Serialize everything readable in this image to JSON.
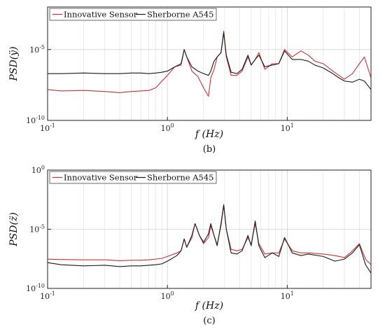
{
  "chart_data": [
    {
      "type": "line",
      "panel_label": "(b)",
      "ylabel": "PSD(ÿ)",
      "xlabel": "f (Hz)",
      "x_scale": "log",
      "y_scale": "log",
      "xlim": [
        0.1,
        50
      ],
      "ylim": [
        1e-10,
        0.01
      ],
      "x_ticks": [
        0.1,
        1,
        10
      ],
      "x_tick_labels": [
        "10^-1",
        "10^0",
        "10^1"
      ],
      "y_ticks": [
        1e-10,
        1e-05
      ],
      "y_tick_labels": [
        "10^-10",
        "10^-5"
      ],
      "grid": true,
      "legend": "top-left",
      "series": [
        {
          "name": "Innovative Sensor",
          "color": "#cc3333",
          "points": [
            [
              0.1,
              1.5e-08
            ],
            [
              0.13,
              1.2e-08
            ],
            [
              0.2,
              1.3e-08
            ],
            [
              0.3,
              1.1e-08
            ],
            [
              0.4,
              9e-09
            ],
            [
              0.5,
              1.1e-08
            ],
            [
              0.6,
              1.2e-08
            ],
            [
              0.7,
              1.3e-08
            ],
            [
              0.8,
              2e-08
            ],
            [
              0.9,
              6e-08
            ],
            [
              1.0,
              1.5e-07
            ],
            [
              1.15,
              6e-07
            ],
            [
              1.3,
              8e-07
            ],
            [
              1.38,
              1e-05
            ],
            [
              1.45,
              3e-06
            ],
            [
              1.6,
              3e-07
            ],
            [
              1.8,
              1.2e-07
            ],
            [
              2.0,
              2e-08
            ],
            [
              2.2,
              5e-09
            ],
            [
              2.3,
              1e-07
            ],
            [
              2.45,
              4e-07
            ],
            [
              2.6,
              3e-06
            ],
            [
              2.8,
              6e-06
            ],
            [
              2.95,
              0.0002
            ],
            [
              3.1,
              3e-06
            ],
            [
              3.4,
              1.5e-07
            ],
            [
              3.8,
              1.5e-07
            ],
            [
              4.2,
              3e-07
            ],
            [
              4.7,
              3e-06
            ],
            [
              5.0,
              8e-07
            ],
            [
              5.4,
              2e-06
            ],
            [
              5.8,
              6e-06
            ],
            [
              6.5,
              4e-07
            ],
            [
              7.5,
              1e-06
            ],
            [
              8.5,
              1e-06
            ],
            [
              9.5,
              1e-05
            ],
            [
              11,
              3e-06
            ],
            [
              13,
              8e-06
            ],
            [
              15,
              4e-06
            ],
            [
              17,
              1.5e-06
            ],
            [
              20,
              1e-06
            ],
            [
              24,
              3e-07
            ],
            [
              27,
              1.5e-07
            ],
            [
              30,
              8e-08
            ],
            [
              35,
              2e-07
            ],
            [
              40,
              1e-06
            ],
            [
              44,
              3e-06
            ],
            [
              50,
              1e-07
            ]
          ]
        },
        {
          "name": "Sherborne A545",
          "color": "#1a1a1a",
          "points": [
            [
              0.1,
              2e-07
            ],
            [
              0.13,
              2e-07
            ],
            [
              0.2,
              2.2e-07
            ],
            [
              0.3,
              2e-07
            ],
            [
              0.4,
              2e-07
            ],
            [
              0.5,
              2.2e-07
            ],
            [
              0.6,
              2.2e-07
            ],
            [
              0.7,
              2e-07
            ],
            [
              0.8,
              2.2e-07
            ],
            [
              0.9,
              2.5e-07
            ],
            [
              1.0,
              3e-07
            ],
            [
              1.15,
              6e-07
            ],
            [
              1.3,
              1e-06
            ],
            [
              1.38,
              1e-05
            ],
            [
              1.45,
              3e-06
            ],
            [
              1.6,
              6e-07
            ],
            [
              1.8,
              3e-07
            ],
            [
              2.0,
              2e-07
            ],
            [
              2.2,
              1.5e-07
            ],
            [
              2.3,
              3e-07
            ],
            [
              2.45,
              1.5e-06
            ],
            [
              2.6,
              3e-06
            ],
            [
              2.8,
              6e-06
            ],
            [
              2.95,
              0.00015
            ],
            [
              3.1,
              4e-06
            ],
            [
              3.4,
              2.5e-07
            ],
            [
              3.8,
              2e-07
            ],
            [
              4.2,
              4e-07
            ],
            [
              4.7,
              4e-06
            ],
            [
              5.0,
              8e-07
            ],
            [
              5.4,
              2e-06
            ],
            [
              5.8,
              4e-06
            ],
            [
              6.5,
              6e-07
            ],
            [
              7.5,
              8e-07
            ],
            [
              8.5,
              1e-06
            ],
            [
              9.5,
              8e-06
            ],
            [
              11,
              2e-06
            ],
            [
              13,
              2e-06
            ],
            [
              15,
              1.5e-06
            ],
            [
              17,
              8e-07
            ],
            [
              20,
              5e-07
            ],
            [
              24,
              2e-07
            ],
            [
              27,
              1e-07
            ],
            [
              30,
              6e-08
            ],
            [
              35,
              5e-08
            ],
            [
              40,
              8e-08
            ],
            [
              44,
              6e-08
            ],
            [
              50,
              1.5e-08
            ]
          ]
        }
      ]
    },
    {
      "type": "line",
      "panel_label": "(c)",
      "ylabel": "PSD(z̈)",
      "xlabel": "f (Hz)",
      "x_scale": "log",
      "y_scale": "log",
      "xlim": [
        0.1,
        50
      ],
      "ylim": [
        1e-10,
        1
      ],
      "x_ticks": [
        0.1,
        1,
        10
      ],
      "x_tick_labels": [
        "10^-1",
        "10^0",
        "10^1"
      ],
      "y_ticks": [
        1e-10,
        1e-05,
        1
      ],
      "y_tick_labels": [
        "10^-10",
        "10^-5",
        "10^0"
      ],
      "grid": true,
      "legend": "top-left",
      "series": [
        {
          "name": "Innovative Sensor",
          "color": "#cc3333",
          "points": [
            [
              0.1,
              3e-08
            ],
            [
              0.13,
              2.8e-08
            ],
            [
              0.2,
              2.6e-08
            ],
            [
              0.3,
              2.6e-08
            ],
            [
              0.4,
              2.2e-08
            ],
            [
              0.5,
              2.4e-08
            ],
            [
              0.6,
              2.4e-08
            ],
            [
              0.7,
              2.6e-08
            ],
            [
              0.8,
              3e-08
            ],
            [
              0.9,
              3.5e-08
            ],
            [
              1.0,
              5e-08
            ],
            [
              1.2,
              1e-07
            ],
            [
              1.3,
              1.5e-07
            ],
            [
              1.38,
              1.5e-06
            ],
            [
              1.45,
              3e-07
            ],
            [
              1.6,
              2e-06
            ],
            [
              1.7,
              3e-05
            ],
            [
              1.85,
              3e-06
            ],
            [
              2.0,
              6e-07
            ],
            [
              2.2,
              2e-06
            ],
            [
              2.3,
              2e-05
            ],
            [
              2.45,
              3e-06
            ],
            [
              2.6,
              5e-07
            ],
            [
              2.8,
              2e-05
            ],
            [
              2.95,
              0.001
            ],
            [
              3.1,
              1e-05
            ],
            [
              3.4,
              2e-07
            ],
            [
              3.8,
              1.5e-07
            ],
            [
              4.2,
              2e-07
            ],
            [
              4.7,
              2e-06
            ],
            [
              5.0,
              5e-07
            ],
            [
              5.4,
              3e-05
            ],
            [
              5.8,
              6e-07
            ],
            [
              6.5,
              8e-08
            ],
            [
              7.5,
              1e-07
            ],
            [
              8.5,
              1e-07
            ],
            [
              9.5,
              1.5e-06
            ],
            [
              11,
              1.5e-07
            ],
            [
              13,
              1e-07
            ],
            [
              15,
              1e-07
            ],
            [
              20,
              8e-08
            ],
            [
              25,
              6e-08
            ],
            [
              30,
              4e-08
            ],
            [
              35,
              1.5e-07
            ],
            [
              40,
              6e-07
            ],
            [
              45,
              3e-08
            ],
            [
              50,
              1e-08
            ]
          ]
        },
        {
          "name": "Sherborne A545",
          "color": "#1a1a1a",
          "points": [
            [
              0.1,
              1.5e-08
            ],
            [
              0.13,
              1e-08
            ],
            [
              0.2,
              8e-09
            ],
            [
              0.3,
              9e-09
            ],
            [
              0.4,
              7e-09
            ],
            [
              0.5,
              8e-09
            ],
            [
              0.6,
              8e-09
            ],
            [
              0.7,
              9e-09
            ],
            [
              0.8,
              1e-08
            ],
            [
              0.9,
              1.2e-08
            ],
            [
              1.0,
              2e-08
            ],
            [
              1.2,
              6e-08
            ],
            [
              1.3,
              1.5e-07
            ],
            [
              1.38,
              1.5e-06
            ],
            [
              1.45,
              3e-07
            ],
            [
              1.6,
              3e-06
            ],
            [
              1.7,
              3e-05
            ],
            [
              1.85,
              3e-06
            ],
            [
              2.0,
              8e-07
            ],
            [
              2.2,
              4e-06
            ],
            [
              2.3,
              3e-05
            ],
            [
              2.45,
              3e-06
            ],
            [
              2.6,
              4e-07
            ],
            [
              2.8,
              3e-05
            ],
            [
              2.95,
              0.0012
            ],
            [
              3.1,
              1e-05
            ],
            [
              3.4,
              1e-07
            ],
            [
              3.8,
              8e-08
            ],
            [
              4.2,
              1.5e-07
            ],
            [
              4.7,
              3e-06
            ],
            [
              5.0,
              4e-07
            ],
            [
              5.4,
              5e-05
            ],
            [
              5.8,
              4e-07
            ],
            [
              6.5,
              4e-08
            ],
            [
              7.5,
              1e-07
            ],
            [
              8.5,
              5e-08
            ],
            [
              9.5,
              2e-06
            ],
            [
              11,
              1e-07
            ],
            [
              13,
              6e-08
            ],
            [
              15,
              8e-08
            ],
            [
              20,
              5e-08
            ],
            [
              25,
              2e-08
            ],
            [
              30,
              3e-08
            ],
            [
              35,
              1e-07
            ],
            [
              40,
              5e-07
            ],
            [
              45,
              1e-08
            ],
            [
              50,
              2e-09
            ]
          ]
        }
      ]
    }
  ]
}
